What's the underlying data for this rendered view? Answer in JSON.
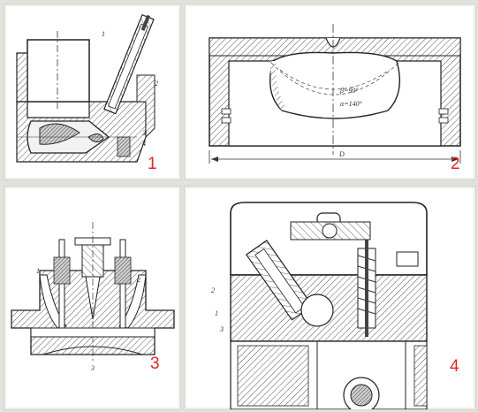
{
  "colors": {
    "accent": "#e0262a",
    "ink": "#2b2b2b",
    "hatch": "#6a6a6a",
    "panel_bg": "#ffffff",
    "page_bg": "#e2e1dc"
  },
  "panels": [
    {
      "number": "1",
      "labels": [
        "1",
        "2",
        "3",
        "4"
      ]
    },
    {
      "number": "2",
      "labels": [
        "β=90°",
        "α=140°",
        "D"
      ]
    },
    {
      "number": "3",
      "labels": [
        "1",
        "2",
        "3"
      ]
    },
    {
      "number": "4",
      "labels": [
        "2",
        "1",
        "3"
      ]
    }
  ]
}
